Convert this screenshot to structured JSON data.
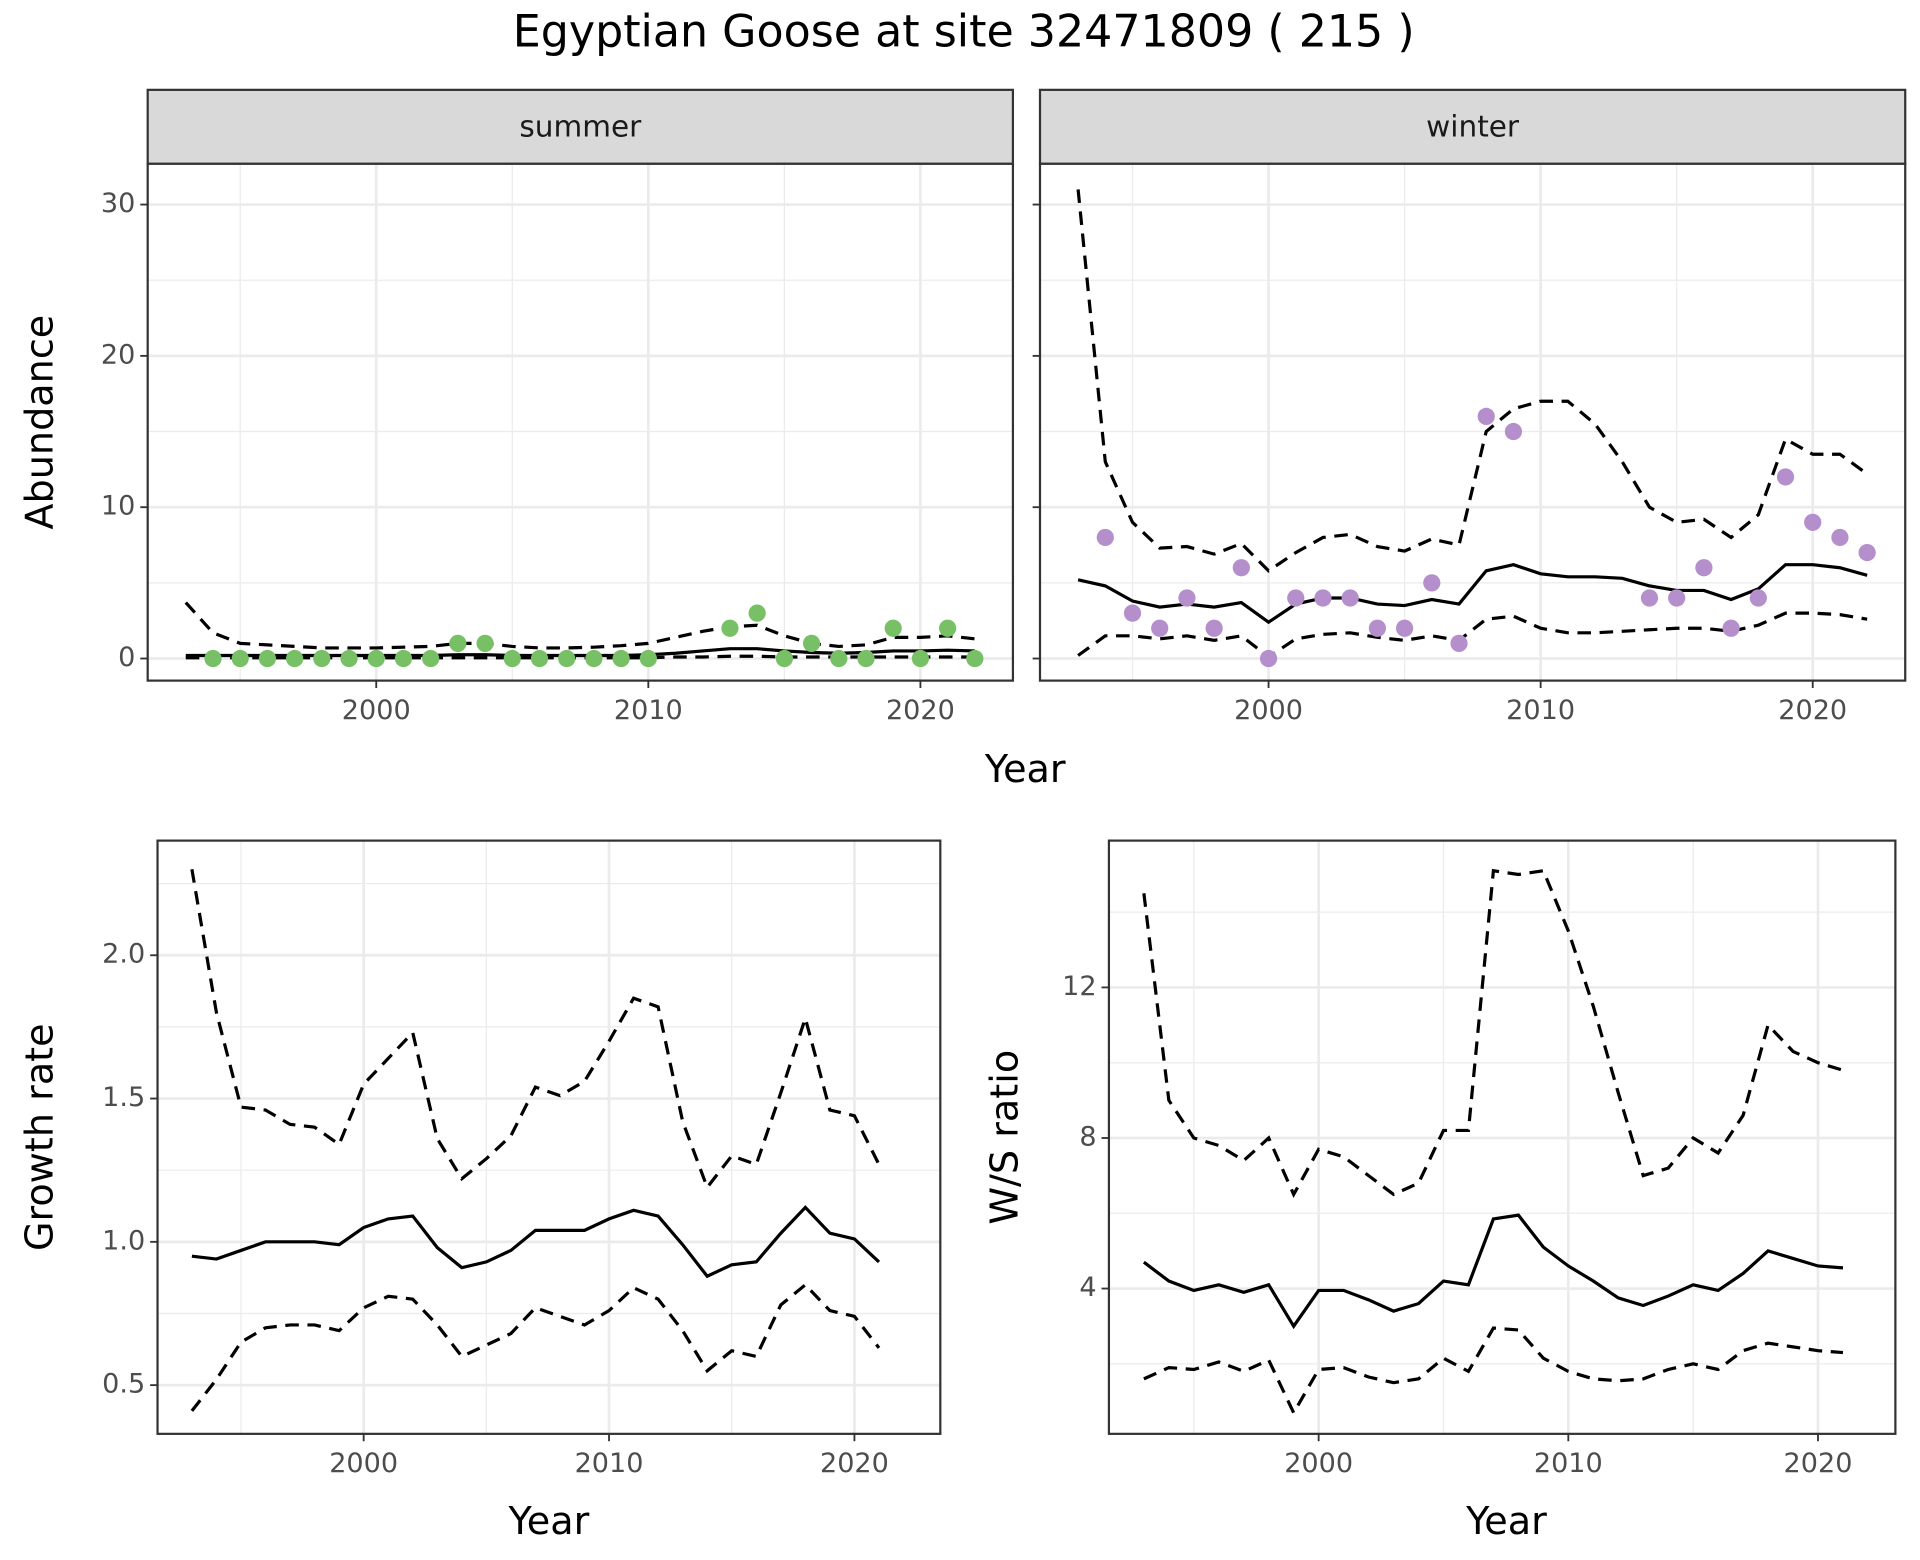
{
  "title": "Egyptian Goose at site 32471809 ( 215 )",
  "chart_data": [
    {
      "type": "line",
      "facet": "summer",
      "ylabel": "Abundance",
      "xlabel": "Year",
      "x": [
        1993,
        1994,
        1995,
        1996,
        1997,
        1998,
        1999,
        2000,
        2001,
        2002,
        2003,
        2004,
        2005,
        2006,
        2007,
        2008,
        2009,
        2010,
        2011,
        2012,
        2013,
        2014,
        2015,
        2016,
        2017,
        2018,
        2019,
        2020,
        2021,
        2022
      ],
      "xlim": [
        1991.6,
        2023.4
      ],
      "xticks": [
        2000,
        2010,
        2020
      ],
      "ylim": [
        -1.46,
        32.7
      ],
      "yticks": [
        0,
        10,
        20,
        30
      ],
      "ytick_labels": true,
      "grid": true,
      "minor_grid": true,
      "series": [
        {
          "color": "#000000",
          "dash": false,
          "values": [
            0.2,
            0.2,
            0.2,
            0.2,
            0.2,
            0.2,
            0.2,
            0.2,
            0.2,
            0.2,
            0.25,
            0.25,
            0.2,
            0.2,
            0.2,
            0.2,
            0.2,
            0.25,
            0.35,
            0.5,
            0.65,
            0.65,
            0.5,
            0.4,
            0.35,
            0.4,
            0.5,
            0.5,
            0.55,
            0.5
          ]
        },
        {
          "color": "#000000",
          "dash": true,
          "values": [
            3.7,
            1.7,
            1.0,
            0.9,
            0.8,
            0.7,
            0.7,
            0.7,
            0.75,
            0.8,
            1.0,
            1.0,
            0.8,
            0.7,
            0.7,
            0.75,
            0.85,
            1.0,
            1.4,
            1.8,
            2.1,
            2.2,
            1.5,
            1.0,
            0.8,
            0.9,
            1.4,
            1.4,
            1.5,
            1.3
          ]
        },
        {
          "color": "#000000",
          "dash": true,
          "values": [
            0.05,
            0.05,
            0.05,
            0.05,
            0.05,
            0.05,
            0.05,
            0.05,
            0.05,
            0.05,
            0.05,
            0.05,
            0.05,
            0.05,
            0.05,
            0.05,
            0.05,
            0.05,
            0.1,
            0.1,
            0.15,
            0.15,
            0.1,
            0.1,
            0.1,
            0.1,
            0.1,
            0.1,
            0.1,
            0.1
          ]
        }
      ],
      "points": {
        "color": "#77c066",
        "values": [
          null,
          0,
          0,
          0,
          0,
          0,
          0,
          0,
          0,
          0,
          1,
          1,
          0,
          0,
          0,
          0,
          0,
          0,
          null,
          null,
          2,
          3,
          0,
          1,
          0,
          0,
          2,
          0,
          2,
          0
        ]
      }
    },
    {
      "type": "line",
      "facet": "winter",
      "x": [
        1993,
        1994,
        1995,
        1996,
        1997,
        1998,
        1999,
        2000,
        2001,
        2002,
        2003,
        2004,
        2005,
        2006,
        2007,
        2008,
        2009,
        2010,
        2011,
        2012,
        2013,
        2014,
        2015,
        2016,
        2017,
        2018,
        2019,
        2020,
        2021,
        2022
      ],
      "xlim": [
        1991.6,
        2023.4
      ],
      "xticks": [
        2000,
        2010,
        2020
      ],
      "ylim": [
        -1.46,
        32.7
      ],
      "yticks": [
        0,
        10,
        20,
        30
      ],
      "ytick_labels": false,
      "grid": true,
      "minor_grid": true,
      "series": [
        {
          "color": "#000000",
          "dash": false,
          "values": [
            5.2,
            4.8,
            3.8,
            3.4,
            3.6,
            3.4,
            3.7,
            2.4,
            3.6,
            4.0,
            4.0,
            3.6,
            3.5,
            3.9,
            3.6,
            5.8,
            6.2,
            5.6,
            5.4,
            5.4,
            5.3,
            4.8,
            4.5,
            4.5,
            3.9,
            4.6,
            6.2,
            6.2,
            6.0,
            5.5
          ]
        },
        {
          "color": "#000000",
          "dash": true,
          "values": [
            31,
            13,
            9,
            7.3,
            7.4,
            6.9,
            7.6,
            5.8,
            7.0,
            8.0,
            8.2,
            7.4,
            7.1,
            7.9,
            7.5,
            15,
            16.5,
            17,
            17,
            15.5,
            13,
            10,
            9,
            9.2,
            8,
            9.5,
            14.5,
            13.5,
            13.5,
            12.2
          ]
        },
        {
          "color": "#000000",
          "dash": true,
          "values": [
            0.2,
            1.5,
            1.5,
            1.3,
            1.5,
            1.2,
            1.5,
            0.1,
            1.3,
            1.6,
            1.7,
            1.4,
            1.2,
            1.5,
            1.2,
            2.6,
            2.8,
            2.0,
            1.7,
            1.7,
            1.8,
            1.9,
            2.0,
            2.0,
            1.8,
            2.2,
            3.0,
            3.0,
            2.9,
            2.6
          ]
        }
      ],
      "points": {
        "color": "#b48fcc",
        "values": [
          null,
          8,
          3,
          2,
          4,
          2,
          6,
          0,
          4,
          4,
          4,
          2,
          2,
          5,
          1,
          16,
          15,
          null,
          null,
          null,
          null,
          4,
          4,
          6,
          2,
          4,
          12,
          9,
          8,
          7
        ]
      }
    },
    {
      "type": "line",
      "ylabel": "Growth rate",
      "xlabel": "Year",
      "x": [
        1993,
        1994,
        1995,
        1996,
        1997,
        1998,
        1999,
        2000,
        2001,
        2002,
        2003,
        2004,
        2005,
        2006,
        2007,
        2008,
        2009,
        2010,
        2011,
        2012,
        2013,
        2014,
        2015,
        2016,
        2017,
        2018,
        2019,
        2020,
        2021
      ],
      "xlim": [
        1991.6,
        2023.5
      ],
      "xticks": [
        2000,
        2010,
        2020
      ],
      "ylim": [
        0.33,
        2.4
      ],
      "yticks": [
        0.5,
        {
          "value": 1.0,
          "label": "1.0"
        },
        1.5,
        {
          "value": 2.0,
          "label": "2.0"
        }
      ],
      "ytick_labels": true,
      "grid": true,
      "minor_grid": true,
      "series": [
        {
          "color": "#000000",
          "dash": false,
          "values": [
            0.95,
            0.94,
            0.97,
            1.0,
            1.0,
            1.0,
            0.99,
            1.05,
            1.08,
            1.09,
            0.98,
            0.91,
            0.93,
            0.97,
            1.04,
            1.04,
            1.04,
            1.08,
            1.11,
            1.09,
            0.99,
            0.88,
            0.92,
            0.93,
            1.03,
            1.12,
            1.03,
            1.01,
            0.93
          ]
        },
        {
          "color": "#000000",
          "dash": true,
          "values": [
            2.3,
            1.8,
            1.47,
            1.46,
            1.41,
            1.4,
            1.34,
            1.55,
            1.64,
            1.73,
            1.36,
            1.22,
            1.29,
            1.37,
            1.54,
            1.51,
            1.56,
            1.7,
            1.85,
            1.82,
            1.42,
            1.19,
            1.3,
            1.27,
            1.52,
            1.78,
            1.46,
            1.44,
            1.27
          ]
        },
        {
          "color": "#000000",
          "dash": true,
          "values": [
            0.41,
            0.52,
            0.65,
            0.7,
            0.71,
            0.71,
            0.69,
            0.77,
            0.81,
            0.8,
            0.71,
            0.6,
            0.64,
            0.68,
            0.77,
            0.74,
            0.71,
            0.76,
            0.84,
            0.8,
            0.69,
            0.55,
            0.62,
            0.6,
            0.78,
            0.85,
            0.76,
            0.74,
            0.63
          ]
        }
      ]
    },
    {
      "type": "line",
      "ylabel": "W/S ratio",
      "xlabel": "Year",
      "x": [
        1993,
        1994,
        1995,
        1996,
        1997,
        1998,
        1999,
        2000,
        2001,
        2002,
        2003,
        2004,
        2005,
        2006,
        2007,
        2008,
        2009,
        2010,
        2011,
        2012,
        2013,
        2014,
        2015,
        2016,
        2017,
        2018,
        2019,
        2020,
        2021
      ],
      "xlim": [
        1991.6,
        2023.1
      ],
      "xticks": [
        2000,
        2010,
        2020
      ],
      "ylim": [
        0.14,
        15.9
      ],
      "yticks": [
        4,
        8,
        12
      ],
      "ytick_labels": true,
      "grid": true,
      "minor_grid": true,
      "series": [
        {
          "color": "#000000",
          "dash": false,
          "values": [
            4.7,
            4.2,
            3.95,
            4.1,
            3.9,
            4.1,
            3.0,
            3.95,
            3.95,
            3.7,
            3.4,
            3.6,
            4.2,
            4.1,
            5.85,
            5.95,
            5.1,
            4.6,
            4.2,
            3.75,
            3.55,
            3.8,
            4.1,
            3.95,
            4.4,
            5.0,
            4.8,
            4.6,
            4.55
          ]
        },
        {
          "color": "#000000",
          "dash": true,
          "values": [
            14.5,
            9.0,
            8.0,
            7.8,
            7.4,
            8.0,
            6.5,
            7.7,
            7.5,
            7.0,
            6.5,
            6.8,
            8.2,
            8.2,
            15.1,
            15.0,
            15.1,
            13.5,
            11.5,
            9.2,
            7.0,
            7.2,
            8.0,
            7.6,
            8.6,
            11.0,
            10.3,
            10.0,
            9.8
          ]
        },
        {
          "color": "#000000",
          "dash": true,
          "values": [
            1.6,
            1.9,
            1.85,
            2.05,
            1.8,
            2.1,
            0.7,
            1.85,
            1.9,
            1.65,
            1.5,
            1.6,
            2.15,
            1.8,
            2.95,
            2.9,
            2.15,
            1.8,
            1.6,
            1.55,
            1.6,
            1.85,
            2.0,
            1.85,
            2.35,
            2.55,
            2.45,
            2.35,
            2.3
          ]
        }
      ]
    }
  ]
}
